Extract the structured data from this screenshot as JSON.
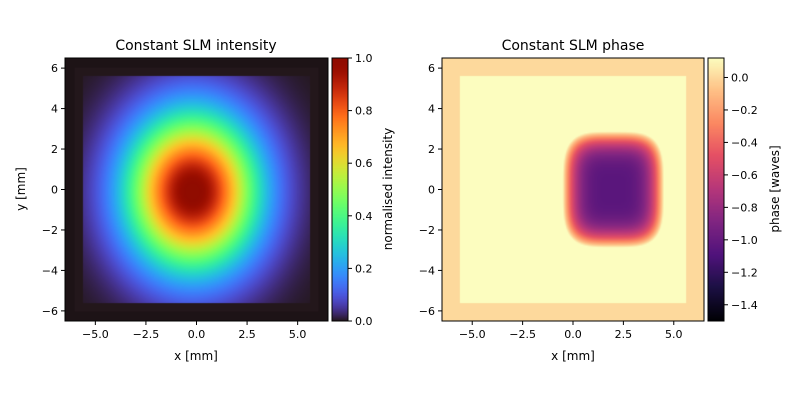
{
  "chart_data": [
    {
      "type": "heatmap",
      "title": "Constant SLM intensity",
      "xlabel": "x [mm]",
      "ylabel": "y [mm]",
      "xlim": [
        -6.5,
        6.5
      ],
      "ylim": [
        -6.5,
        6.5
      ],
      "xticks": [
        -5.0,
        -2.5,
        0.0,
        2.5,
        5.0
      ],
      "xtick_labels": [
        "−5.0",
        "−2.5",
        "0.0",
        "2.5",
        "5.0"
      ],
      "yticks": [
        -6,
        -4,
        -2,
        0,
        2,
        4,
        6
      ],
      "ytick_labels": [
        "−6",
        "−4",
        "−2",
        "0",
        "2",
        "4",
        "6"
      ],
      "colormap": "turbo",
      "colorbar": {
        "label": "normalised intensity",
        "range": [
          0.0,
          1.0
        ],
        "ticks": [
          0.0,
          0.2,
          0.4,
          0.6,
          0.8,
          1.0
        ],
        "tick_labels": [
          "0.0",
          "0.2",
          "0.4",
          "0.6",
          "0.8",
          "1.0"
        ]
      },
      "aperture_half_width_mm": 5.6,
      "gaussian": {
        "center": [
          -0.2,
          -0.1
        ],
        "sigma_x_mm": 2.2,
        "sigma_y_mm": 2.6,
        "peak": 1.0
      },
      "outside_aperture_value": 0.0,
      "outer_border_value": 0.0
    },
    {
      "type": "heatmap",
      "title": "Constant SLM phase",
      "xlabel": "x [mm]",
      "ylabel": "",
      "xlim": [
        -6.5,
        6.5
      ],
      "ylim": [
        -6.5,
        6.5
      ],
      "xticks": [
        -5.0,
        -2.5,
        0.0,
        2.5,
        5.0
      ],
      "xtick_labels": [
        "−5.0",
        "−2.5",
        "0.0",
        "2.5",
        "5.0"
      ],
      "yticks": [
        -6,
        -4,
        -2,
        0,
        2,
        4,
        6
      ],
      "ytick_labels": [
        "−6",
        "−4",
        "−2",
        "0",
        "2",
        "4",
        "6"
      ],
      "colormap": "magma",
      "colorbar": {
        "label": "phase [waves]",
        "range": [
          -1.5,
          0.12
        ],
        "ticks": [
          -1.4,
          -1.2,
          -1.0,
          -0.8,
          -0.6,
          -0.4,
          -0.2,
          0.0
        ],
        "tick_labels": [
          "−1.4",
          "−1.2",
          "−1.0",
          "−0.8",
          "−0.6",
          "−0.4",
          "−0.2",
          "0.0"
        ]
      },
      "aperture_half_width_mm": 5.6,
      "phase_model": {
        "min_center": [
          2.0,
          0.0
        ],
        "min_value": -1.05,
        "curvature_x": 0.033,
        "curvature_y": 0.02,
        "corner_min": -1.5
      },
      "outside_aperture_value": 0.0
    }
  ]
}
